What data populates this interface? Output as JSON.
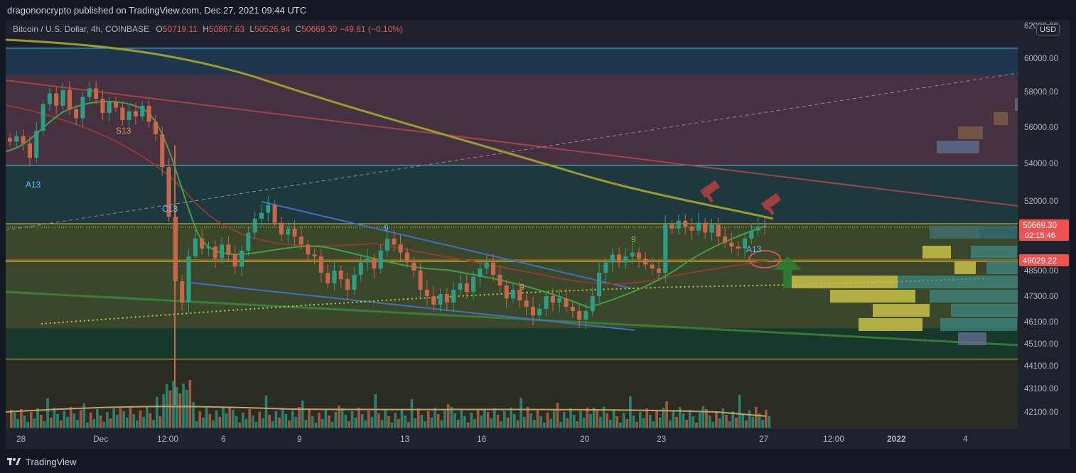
{
  "header": {
    "published_line": "dragononcrypto published on TradingView.com, Dec 27, 2021 09:44 UTC"
  },
  "legend": {
    "symbol_line": "Bitcoin / U.S. Dollar, 4h, COINBASE",
    "open_label": "O",
    "open_value": "50719.11",
    "high_label": "H",
    "high_value": "50867.63",
    "low_label": "L",
    "low_value": "50526.94",
    "close_label": "C",
    "close_value": "50669.30",
    "change": "−49.81 (−0.10%)"
  },
  "currency_badge": "USD",
  "footer": {
    "brand": "TradingView",
    "logo_icon": "tradingview-logo-icon"
  },
  "colors": {
    "background": "#1e222d",
    "up": "#26a69a",
    "down": "#ef5350",
    "price_badge": "#ef5350",
    "ma_200": "#9c9b2e",
    "ma_fast": "#43a047"
  },
  "chart_data": {
    "type": "candlestick",
    "title": "Bitcoin / U.S. Dollar, 4h, COINBASE",
    "x_axis": {
      "tick_labels": [
        "28",
        "Dec",
        "12:00",
        "6",
        "9",
        "13",
        "16",
        "20",
        "23",
        "27",
        "12:00",
        "2022",
        "4"
      ]
    },
    "y_axis": {
      "range": [
        41500,
        62200
      ],
      "tick_labels": [
        "60000.00",
        "58000.00",
        "56000.00",
        "54000.00",
        "52000.00",
        "48500.00",
        "47300.00",
        "46100.00",
        "45100.00",
        "44100.00",
        "43100.00",
        "42100.00"
      ],
      "top_partial_label": "62000.00"
    },
    "last_price": {
      "value": "50669.30",
      "countdown": "02:15:46"
    },
    "marked_level": {
      "value": "49029.22"
    },
    "annotations": {
      "candle_counts": [
        "A13",
        "S13",
        "C13",
        "9",
        "9",
        "9",
        "A13"
      ]
    },
    "candles_sample": {
      "description_note": "",
      "closes": [
        55200,
        55500,
        55100,
        54300,
        55800,
        57300,
        57900,
        57200,
        58100,
        57000,
        56500,
        57700,
        58200,
        57600,
        56800,
        57400,
        57100,
        56400,
        56900,
        56600,
        57200,
        56300,
        55600,
        53800,
        51200,
        48000,
        47000,
        49200,
        50100,
        49600,
        49700,
        49100,
        49800,
        49300,
        48700,
        49500,
        50400,
        51100,
        51400,
        51800,
        50900,
        50300,
        50600,
        50200,
        49800,
        49300,
        49200,
        48400,
        47900,
        48500,
        48100,
        47600,
        48300,
        48900,
        49100,
        48600,
        49500,
        50100,
        49800,
        49400,
        48900,
        48500,
        47600,
        47300,
        46900,
        47400,
        47000,
        47600,
        47900,
        47500,
        48200,
        48600,
        48900,
        48300,
        47800,
        47200,
        47600,
        47100,
        46800,
        46400,
        46700,
        47300,
        47000,
        47200,
        46800,
        46600,
        46200,
        46600,
        47300,
        48400,
        48900,
        49300,
        48900,
        49200,
        49400,
        49100,
        48800,
        48600,
        48400,
        50800,
        50600,
        51000,
        50700,
        50500,
        50900,
        50400,
        50800,
        50200,
        49900,
        49700,
        49600,
        50100,
        50500,
        50700,
        50669
      ]
    }
  }
}
